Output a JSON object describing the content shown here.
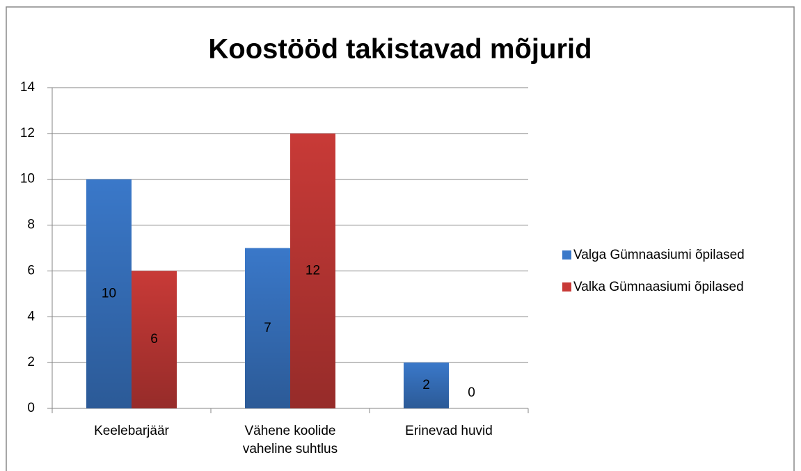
{
  "chart_data": {
    "type": "bar",
    "title": "Koostööd takistavad mõjurid",
    "categories": [
      "Keelebarjäär",
      "Vähene koolide vaheline suhtlus",
      "Erinevad huvid"
    ],
    "series": [
      {
        "name": "Valga Gümnaasiumi õpilased",
        "color": "#3a78c9",
        "values": [
          10,
          7,
          2
        ]
      },
      {
        "name": "Valka Gümnaasiumi õpilased",
        "color": "#c83a37",
        "values": [
          6,
          12,
          0
        ]
      }
    ],
    "ylim": [
      0,
      14
    ],
    "yticks": [
      0,
      2,
      4,
      6,
      8,
      10,
      12,
      14
    ],
    "grid": true,
    "legend": "right"
  }
}
